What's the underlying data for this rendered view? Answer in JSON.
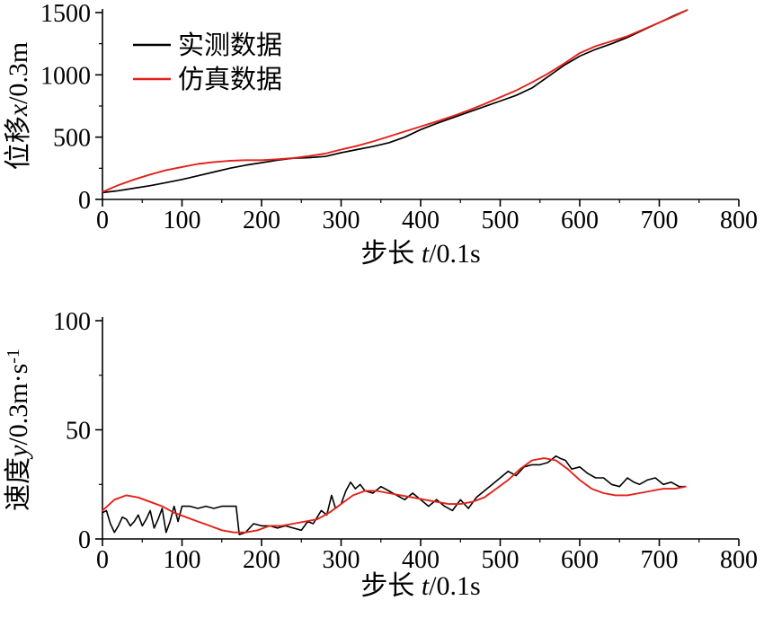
{
  "page": {
    "background": "#ffffff",
    "axis_color": "#000000"
  },
  "chart_data": [
    {
      "type": "line",
      "title": "",
      "xlabel": "步长 t/0.1s",
      "xlabel_parts": [
        {
          "t": "步长 ",
          "i": false
        },
        {
          "t": "t",
          "i": true
        },
        {
          "t": "/0.1s",
          "i": false
        }
      ],
      "ylabel": "位移x/0.3m",
      "ylabel_parts": [
        {
          "t": "位移",
          "i": false
        },
        {
          "t": "x",
          "i": true
        },
        {
          "t": "/0.3m",
          "i": false
        }
      ],
      "xlim": [
        0,
        800
      ],
      "ylim": [
        0,
        1500
      ],
      "xticks": [
        0,
        100,
        200,
        300,
        400,
        500,
        600,
        700,
        800
      ],
      "yticks": [
        0,
        500,
        1000,
        1500
      ],
      "x_minor_step": 50,
      "y_minor_step": 250,
      "grid": false,
      "legend": {
        "visible": true,
        "position": "top-left-inside"
      },
      "series": [
        {
          "name": "实测数据",
          "color": "#000000",
          "width": 1.7,
          "x": [
            0,
            20,
            40,
            60,
            80,
            100,
            120,
            140,
            160,
            180,
            200,
            220,
            240,
            260,
            280,
            300,
            320,
            340,
            360,
            380,
            400,
            420,
            440,
            460,
            480,
            500,
            520,
            540,
            560,
            580,
            600,
            620,
            640,
            660,
            680,
            700,
            720,
            735
          ],
          "y": [
            55,
            70,
            90,
            110,
            135,
            160,
            190,
            220,
            250,
            275,
            295,
            315,
            330,
            335,
            345,
            375,
            400,
            425,
            455,
            500,
            560,
            610,
            655,
            700,
            745,
            790,
            835,
            895,
            985,
            1075,
            1150,
            1205,
            1250,
            1300,
            1360,
            1420,
            1480,
            1520
          ]
        },
        {
          "name": "仿真数据",
          "color": "#e32119",
          "width": 1.9,
          "x": [
            0,
            20,
            40,
            60,
            80,
            100,
            120,
            140,
            160,
            180,
            200,
            220,
            240,
            260,
            280,
            300,
            320,
            340,
            360,
            380,
            400,
            420,
            440,
            460,
            480,
            500,
            520,
            540,
            560,
            580,
            600,
            620,
            640,
            660,
            680,
            700,
            720,
            735
          ],
          "y": [
            60,
            115,
            160,
            200,
            235,
            260,
            285,
            300,
            310,
            315,
            315,
            322,
            332,
            348,
            368,
            400,
            430,
            465,
            505,
            545,
            585,
            625,
            668,
            715,
            765,
            820,
            875,
            940,
            1010,
            1090,
            1175,
            1230,
            1270,
            1310,
            1365,
            1420,
            1475,
            1520
          ]
        }
      ]
    },
    {
      "type": "line",
      "title": "",
      "xlabel": "步长 t/0.1s",
      "xlabel_parts": [
        {
          "t": "步长 ",
          "i": false
        },
        {
          "t": "t",
          "i": true
        },
        {
          "t": "/0.1s",
          "i": false
        }
      ],
      "ylabel": "速度y/0.3m·s⁻¹",
      "ylabel_parts": [
        {
          "t": "速度",
          "i": false
        },
        {
          "t": "y",
          "i": true
        },
        {
          "t": "/0.3m·s",
          "i": false
        },
        {
          "t": "-1",
          "sup": true
        }
      ],
      "xlim": [
        0,
        800
      ],
      "ylim": [
        0,
        100
      ],
      "xticks": [
        0,
        100,
        200,
        300,
        400,
        500,
        600,
        700,
        800
      ],
      "yticks": [
        0,
        50,
        100
      ],
      "x_minor_step": 50,
      "y_minor_step": 25,
      "grid": false,
      "legend": {
        "visible": false,
        "position": "none"
      },
      "series": [
        {
          "name": "实测数据",
          "color": "#000000",
          "width": 1.6,
          "x": [
            0,
            5,
            10,
            15,
            20,
            25,
            30,
            35,
            40,
            45,
            50,
            55,
            60,
            65,
            70,
            75,
            80,
            85,
            90,
            95,
            100,
            110,
            120,
            130,
            140,
            150,
            160,
            168,
            172,
            180,
            190,
            200,
            210,
            220,
            230,
            240,
            250,
            258,
            265,
            275,
            282,
            288,
            293,
            300,
            306,
            312,
            318,
            324,
            330,
            340,
            350,
            360,
            370,
            380,
            390,
            400,
            410,
            420,
            430,
            440,
            450,
            460,
            470,
            480,
            490,
            500,
            510,
            520,
            530,
            540,
            550,
            560,
            570,
            575,
            582,
            590,
            600,
            610,
            620,
            630,
            640,
            650,
            660,
            668,
            675,
            685,
            695,
            705,
            715,
            725,
            733
          ],
          "y": [
            12,
            13,
            7,
            3,
            6,
            10,
            9,
            6,
            8,
            11,
            6,
            9,
            13,
            5,
            9,
            14,
            3,
            8,
            15,
            8,
            15,
            15,
            14,
            15,
            14,
            15,
            15,
            15,
            2,
            3,
            7,
            6,
            6,
            5,
            6,
            5,
            4,
            8,
            7,
            13,
            11,
            20,
            14,
            16,
            22,
            26,
            23,
            25,
            22,
            21,
            24,
            22,
            20,
            18,
            21,
            18,
            15,
            18,
            15,
            13,
            18,
            14,
            19,
            22,
            25,
            28,
            31,
            29,
            33,
            34,
            34,
            35,
            38,
            37,
            36,
            32,
            33,
            30,
            28,
            28,
            25,
            24,
            28,
            26,
            25,
            27,
            28,
            25,
            26,
            24,
            24
          ]
        },
        {
          "name": "仿真数据",
          "color": "#e32119",
          "width": 1.9,
          "x": [
            0,
            15,
            30,
            45,
            60,
            75,
            90,
            105,
            120,
            135,
            150,
            165,
            180,
            195,
            210,
            225,
            240,
            255,
            270,
            285,
            300,
            315,
            330,
            345,
            360,
            375,
            390,
            405,
            420,
            435,
            450,
            465,
            480,
            495,
            510,
            525,
            540,
            555,
            570,
            585,
            600,
            615,
            630,
            645,
            660,
            675,
            690,
            705,
            720,
            733
          ],
          "y": [
            13,
            18,
            20,
            19,
            17,
            15,
            12,
            10,
            8,
            6,
            4,
            3,
            3,
            4,
            6,
            6,
            7,
            8,
            9,
            12,
            16,
            20,
            22,
            22,
            21,
            20,
            19,
            18,
            17,
            16,
            16,
            17,
            19,
            23,
            27,
            32,
            36,
            37,
            36,
            32,
            27,
            23,
            21,
            20,
            20,
            21,
            22,
            23,
            23,
            24
          ]
        }
      ]
    }
  ]
}
